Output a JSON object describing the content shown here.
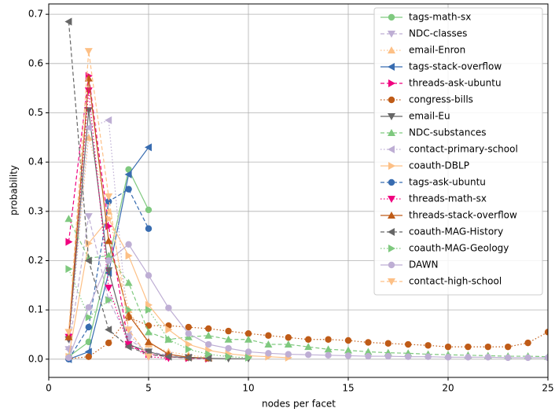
{
  "chart_data": {
    "type": "line",
    "x_label": "nodes per facet",
    "y_label": "probability",
    "xlim": [
      0,
      25
    ],
    "ylim": [
      -0.037,
      0.721
    ],
    "xticks": [
      0,
      5,
      10,
      15,
      20,
      25
    ],
    "yticks": [
      {
        "value": 0,
        "label": "0.0"
      },
      0.1,
      0.2,
      0.3,
      0.4,
      0.5,
      0.6,
      0.7
    ],
    "grid": true,
    "legend": "upper right",
    "series": [
      {
        "name": "tags-math-sx",
        "color": "#7fc97f",
        "marker": "o",
        "linestyle": "solid",
        "x": [
          1,
          2,
          3,
          4,
          5
        ],
        "values": [
          0.005,
          0.035,
          0.2,
          0.385,
          0.303
        ]
      },
      {
        "name": "NDC-classes",
        "color": "#beaed4",
        "marker": "v",
        "linestyle": "dashed",
        "x": [
          1,
          2,
          3,
          4,
          5,
          6,
          7,
          8
        ],
        "values": [
          0.02,
          0.29,
          0.12,
          0.04,
          0.015,
          0.008,
          0.004,
          0.002
        ]
      },
      {
        "name": "email-Enron",
        "color": "#fdc086",
        "marker": "^",
        "linestyle": "dotted",
        "x": [
          1,
          2,
          3,
          4,
          5,
          6,
          7,
          8
        ],
        "values": [
          0.05,
          0.45,
          0.3,
          0.1,
          0.03,
          0.015,
          0.008,
          0.004
        ]
      },
      {
        "name": "tags-stack-overflow",
        "color": "#386cb0",
        "marker": "<",
        "linestyle": "solid",
        "x": [
          1,
          2,
          3,
          4,
          5
        ],
        "values": [
          0,
          0.015,
          0.175,
          0.375,
          0.43
        ]
      },
      {
        "name": "threads-ask-ubuntu",
        "color": "#f0027f",
        "marker": ">",
        "linestyle": "dashed",
        "x": [
          1,
          2,
          3,
          4,
          5,
          6,
          7,
          8
        ],
        "values": [
          0.238,
          0.575,
          0.27,
          0.03,
          0.01,
          0.005,
          0.002,
          0.001
        ]
      },
      {
        "name": "congress-bills",
        "color": "#bf5b17",
        "marker": "o",
        "linestyle": "dotted",
        "x": [
          1,
          2,
          3,
          4,
          5,
          6,
          7,
          8,
          9,
          10,
          11,
          12,
          13,
          14,
          15,
          16,
          17,
          18,
          19,
          20,
          21,
          22,
          23,
          24,
          25
        ],
        "values": [
          0.001,
          0.005,
          0.033,
          0.085,
          0.068,
          0.068,
          0.065,
          0.062,
          0.057,
          0.052,
          0.048,
          0.044,
          0.04,
          0.04,
          0.038,
          0.034,
          0.032,
          0.03,
          0.028,
          0.025,
          0.025,
          0.025,
          0.025,
          0.033,
          0.055
        ]
      },
      {
        "name": "email-Eu",
        "color": "#666666",
        "marker": "v",
        "linestyle": "solid",
        "x": [
          1,
          2,
          3,
          4,
          5,
          6,
          7,
          8,
          9,
          10
        ],
        "values": [
          0.04,
          0.505,
          0.18,
          0.03,
          0.015,
          0.005,
          0.003,
          0.002,
          0.001,
          0.001
        ]
      },
      {
        "name": "NDC-substances",
        "color": "#7fc97f",
        "marker": "^",
        "linestyle": "dashed",
        "x": [
          1,
          2,
          3,
          4,
          5,
          6,
          7,
          8,
          9,
          10,
          11,
          12,
          13,
          14,
          15,
          16,
          17,
          18,
          19,
          20,
          21,
          22,
          23,
          24,
          25
        ],
        "values": [
          0.285,
          0.205,
          0.21,
          0.155,
          0.055,
          0.04,
          0.045,
          0.048,
          0.04,
          0.04,
          0.03,
          0.03,
          0.025,
          0.02,
          0.018,
          0.015,
          0.013,
          0.012,
          0.01,
          0.009,
          0.008,
          0.007,
          0.006,
          0.006,
          0.005
        ]
      },
      {
        "name": "contact-primary-school",
        "color": "#beaed4",
        "marker": "<",
        "linestyle": "dotted",
        "x": [
          1,
          2,
          3,
          4,
          5
        ],
        "values": [
          0.02,
          0.47,
          0.485,
          0.05,
          0.01
        ]
      },
      {
        "name": "coauth-DBLP",
        "color": "#fdc086",
        "marker": ">",
        "linestyle": "solid",
        "x": [
          1,
          2,
          3,
          4,
          5,
          6,
          7,
          8,
          9,
          10,
          11,
          12
        ],
        "values": [
          0.005,
          0.235,
          0.285,
          0.21,
          0.11,
          0.06,
          0.03,
          0.018,
          0.011,
          0.007,
          0.005,
          0.003
        ]
      },
      {
        "name": "tags-ask-ubuntu",
        "color": "#386cb0",
        "marker": "o",
        "linestyle": "dashed",
        "x": [
          1,
          2,
          3,
          4,
          5
        ],
        "values": [
          0,
          0.065,
          0.32,
          0.345,
          0.265
        ]
      },
      {
        "name": "threads-math-sx",
        "color": "#f0027f",
        "marker": "v",
        "linestyle": "dotted",
        "x": [
          1,
          2,
          3,
          4,
          5,
          6
        ],
        "values": [
          0.045,
          0.545,
          0.145,
          0.03,
          0.005,
          0.002
        ]
      },
      {
        "name": "threads-stack-overflow",
        "color": "#bf5b17",
        "marker": "^",
        "linestyle": "solid",
        "x": [
          1,
          2,
          3,
          4,
          5,
          6,
          7,
          8
        ],
        "values": [
          0.045,
          0.57,
          0.24,
          0.09,
          0.035,
          0.01,
          0.004,
          0.002
        ]
      },
      {
        "name": "coauth-MAG-History",
        "color": "#666666",
        "marker": "<",
        "linestyle": "dashed",
        "x": [
          1,
          2,
          3,
          4,
          5,
          6,
          7,
          8
        ],
        "values": [
          0.685,
          0.2,
          0.06,
          0.025,
          0.01,
          0.005,
          0.003,
          0.002
        ]
      },
      {
        "name": "coauth-MAG-Geology",
        "color": "#7fc97f",
        "marker": ">",
        "linestyle": "dotted",
        "x": [
          1,
          2,
          3,
          4,
          5,
          6,
          7,
          8,
          9,
          10
        ],
        "values": [
          0.183,
          0.085,
          0.12,
          0.1,
          0.1,
          0.04,
          0.02,
          0.01,
          0.005,
          0.003
        ]
      },
      {
        "name": "DAWN",
        "color": "#beaed4",
        "marker": "o",
        "linestyle": "solid",
        "x": [
          1,
          2,
          3,
          4,
          5,
          6,
          7,
          8,
          9,
          10,
          11,
          12,
          13,
          14,
          15,
          16,
          17,
          18,
          19,
          20,
          21,
          22,
          23,
          24,
          25
        ],
        "values": [
          0.003,
          0.105,
          0.2,
          0.233,
          0.17,
          0.104,
          0.052,
          0.03,
          0.022,
          0.015,
          0.012,
          0.01,
          0.009,
          0.008,
          0.007,
          0.006,
          0.006,
          0.005,
          0.005,
          0.004,
          0.004,
          0.004,
          0.003,
          0.003,
          0.003
        ]
      },
      {
        "name": "contact-high-school",
        "color": "#fdc086",
        "marker": "v",
        "linestyle": "dashed",
        "x": [
          1,
          2,
          3,
          4,
          5
        ],
        "values": [
          0.055,
          0.625,
          0.33,
          0.06,
          0.005
        ]
      }
    ]
  }
}
